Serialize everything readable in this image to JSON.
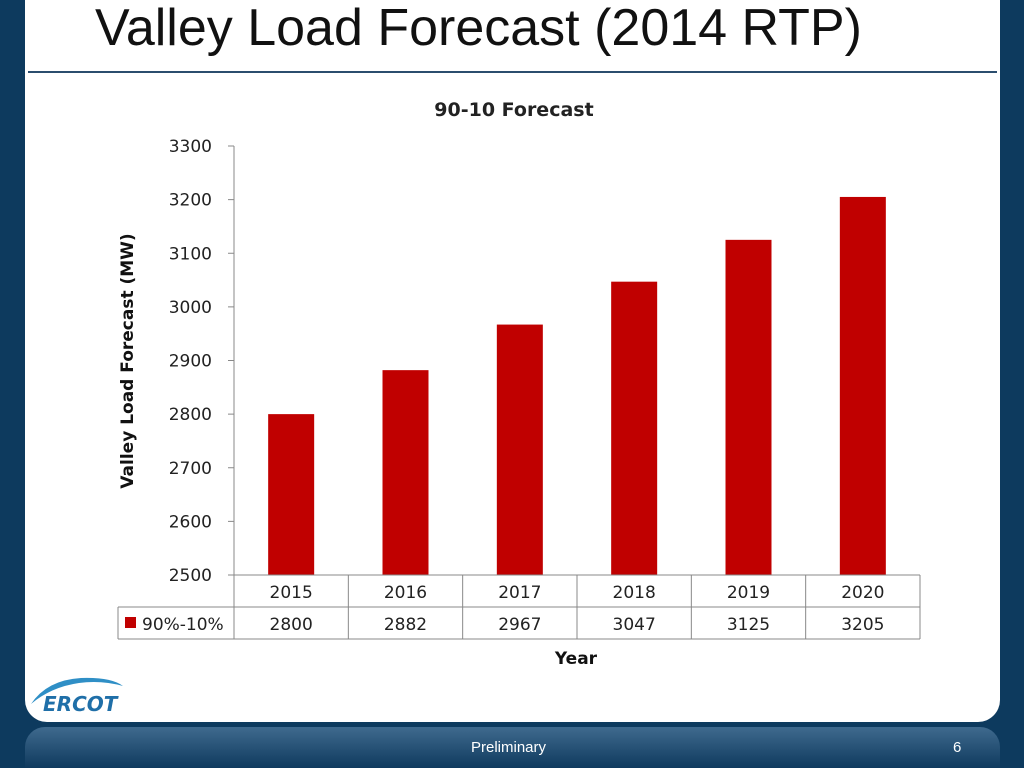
{
  "slide": {
    "title": "Valley Load Forecast (2014 RTP)",
    "footer_text": "Preliminary",
    "page_number": "6",
    "logo_text": "ERCOT"
  },
  "colors": {
    "bar": "#c00000",
    "background": "#0d3a5e",
    "rule": "#2b4d6e"
  },
  "chart_data": {
    "type": "bar",
    "title": "90-10 Forecast",
    "xlabel": "Year",
    "ylabel": "Valley Load Forecast (MW)",
    "categories": [
      "2015",
      "2016",
      "2017",
      "2018",
      "2019",
      "2020"
    ],
    "series": [
      {
        "name": "90%-10%",
        "values": [
          2800,
          2882,
          2967,
          3047,
          3125,
          3205
        ]
      }
    ],
    "yticks": [
      "2500",
      "2600",
      "2700",
      "2800",
      "2900",
      "3000",
      "3100",
      "3200",
      "3300"
    ],
    "ylim": [
      2500,
      3300
    ],
    "grid": false,
    "legend": "data-table"
  }
}
